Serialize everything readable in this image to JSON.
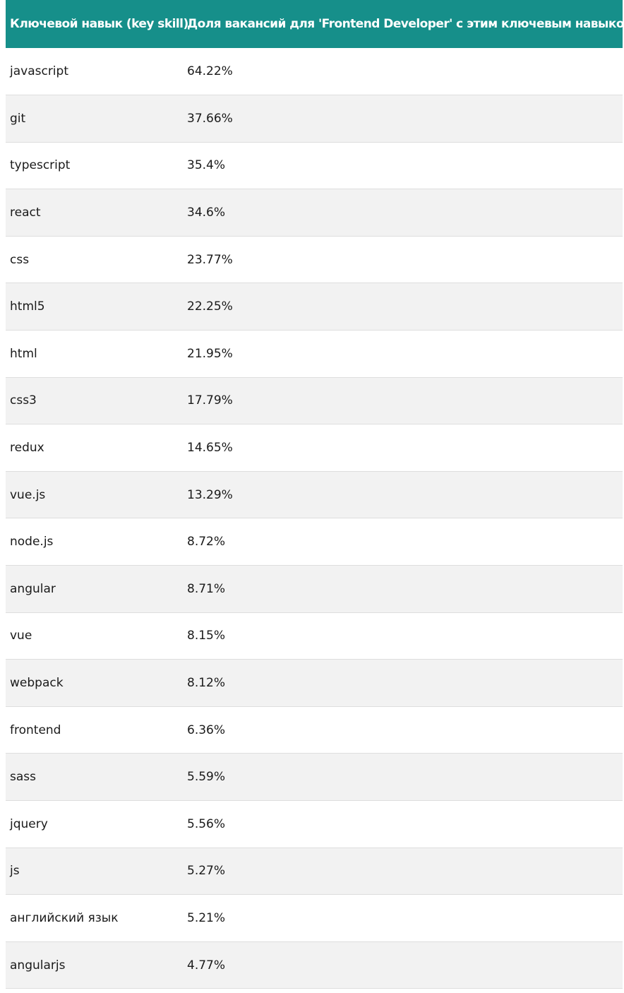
{
  "table": {
    "header": {
      "skill": "Ключевой навык (key skill)",
      "share": "Доля вакансий для 'Frontend Developer' с этим ключевым навыком"
    },
    "rows": [
      {
        "skill": "javascript",
        "share": "64.22%"
      },
      {
        "skill": "git",
        "share": "37.66%"
      },
      {
        "skill": "typescript",
        "share": "35.4%"
      },
      {
        "skill": "react",
        "share": "34.6%"
      },
      {
        "skill": "css",
        "share": "23.77%"
      },
      {
        "skill": "html5",
        "share": "22.25%"
      },
      {
        "skill": "html",
        "share": "21.95%"
      },
      {
        "skill": "css3",
        "share": "17.79%"
      },
      {
        "skill": "redux",
        "share": "14.65%"
      },
      {
        "skill": "vue.js",
        "share": "13.29%"
      },
      {
        "skill": "node.js",
        "share": "8.72%"
      },
      {
        "skill": "angular",
        "share": "8.71%"
      },
      {
        "skill": "vue",
        "share": "8.15%"
      },
      {
        "skill": "webpack",
        "share": "8.12%"
      },
      {
        "skill": "frontend",
        "share": "6.36%"
      },
      {
        "skill": "sass",
        "share": "5.59%"
      },
      {
        "skill": "jquery",
        "share": "5.56%"
      },
      {
        "skill": "js",
        "share": "5.27%"
      },
      {
        "skill": "английский язык",
        "share": "5.21%"
      },
      {
        "skill": "angularjs",
        "share": "4.77%"
      }
    ]
  },
  "colors": {
    "header_bg": "#168f8a",
    "header_text": "#ffffff",
    "row_alt_bg": "#f2f2f2",
    "row_bg": "#ffffff",
    "divider": "#dedede"
  }
}
